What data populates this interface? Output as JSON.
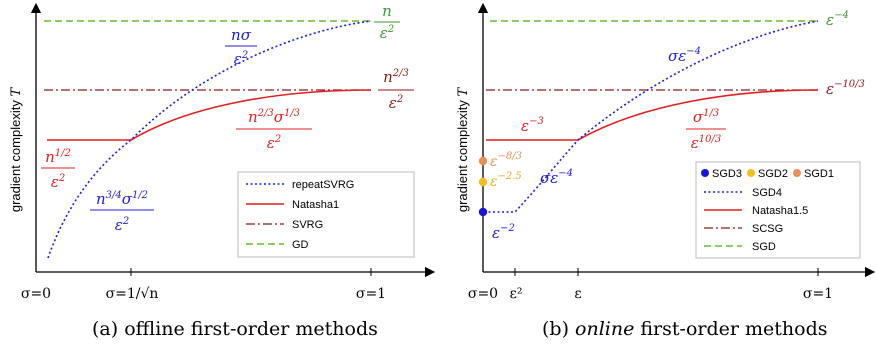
{
  "chart_data": [
    {
      "type": "line",
      "caption": "(a) offline first-order methods",
      "ylabel": "gradient complexity T",
      "x_ticks": [
        "σ=0",
        "σ=1/√n",
        "σ=1"
      ],
      "legend_position": "inside-bottom-right",
      "series": [
        {
          "name": "repeatSVRG",
          "color": "#1f1fcf",
          "style": "dotted"
        },
        {
          "name": "Natasha1",
          "color": "#e02020",
          "style": "solid"
        },
        {
          "name": "SVRG",
          "color": "#8b1a1a",
          "style": "dash-dot"
        },
        {
          "name": "GD",
          "color": "#66bb33",
          "style": "dashed"
        }
      ],
      "annotations": [
        {
          "num": "n",
          "den": "ε²",
          "color": "#3a9a30"
        },
        {
          "num": "nσ",
          "den": "ε²",
          "color": "#1f1fcf"
        },
        {
          "num": "n^2/3",
          "den": "ε²",
          "color": "#8b1a1a"
        },
        {
          "num": "n^2/3 σ^1/3",
          "den": "ε²",
          "color": "#e02020"
        },
        {
          "num": "n^1/2",
          "den": "ε²",
          "color": "#e02020"
        },
        {
          "num": "n^3/4 σ^1/2",
          "den": "ε²",
          "color": "#1f1fcf"
        }
      ]
    },
    {
      "type": "line",
      "caption": "(b) online first-order methods",
      "ylabel": "gradient complexity T",
      "x_ticks": [
        "σ=0",
        "ε²",
        "ε",
        "σ=1"
      ],
      "legend_position": "inside-bottom-right",
      "series": [
        {
          "name": "SGD3",
          "color": "#1818d0",
          "style": "point"
        },
        {
          "name": "SGD2",
          "color": "#f0c020",
          "style": "point"
        },
        {
          "name": "SGD1",
          "color": "#e8905a",
          "style": "point"
        },
        {
          "name": "SGD4",
          "color": "#1f1fcf",
          "style": "dotted"
        },
        {
          "name": "Natasha1.5",
          "color": "#e02020",
          "style": "solid"
        },
        {
          "name": "SCSG",
          "color": "#8b1a1a",
          "style": "dash-dot"
        },
        {
          "name": "SGD",
          "color": "#66bb33",
          "style": "dashed"
        }
      ],
      "annotations": [
        {
          "text": "ε^-4",
          "color": "#3a9a30"
        },
        {
          "text": "σε^-4",
          "color": "#1f1fcf"
        },
        {
          "text": "ε^-10/3",
          "color": "#8b1a1a"
        },
        {
          "text": "ε^-3",
          "color": "#e02020"
        },
        {
          "num": "σ^1/3",
          "den": "ε^10/3",
          "color": "#e02020"
        },
        {
          "text": "ε^-8/3",
          "color": "#e8905a"
        },
        {
          "text": "ε^-2.5",
          "color": "#e0b020"
        },
        {
          "text": "σε^-4",
          "color": "#1f1fcf"
        },
        {
          "text": "ε^-2",
          "color": "#1f1fcf"
        }
      ]
    }
  ]
}
